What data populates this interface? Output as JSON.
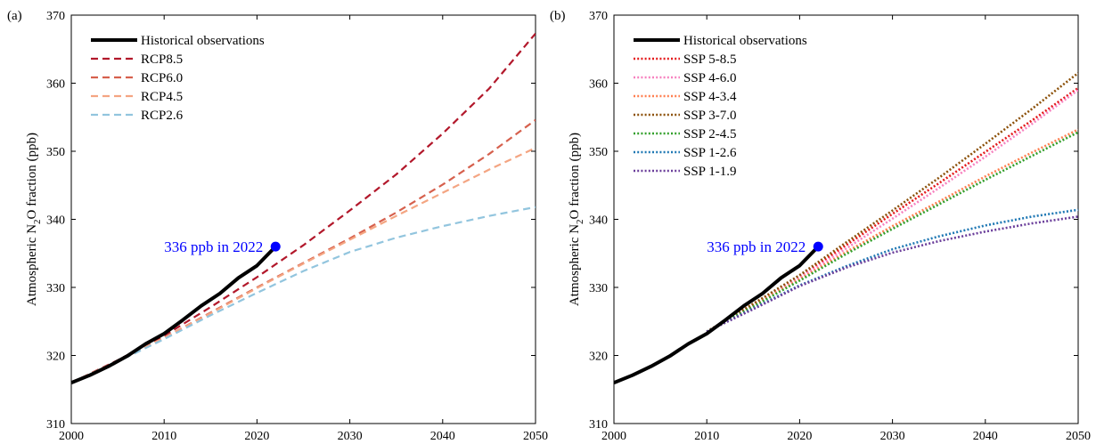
{
  "chart_data": [
    {
      "type": "line",
      "panel_label": "(a)",
      "ylabel_main": "Atmospheric N",
      "ylabel_sub": "2",
      "ylabel_rest": "O fraction (ppb)",
      "xlim": [
        2000,
        2050
      ],
      "ylim": [
        310,
        370
      ],
      "xticks": [
        "2000",
        "2010",
        "2020",
        "2030",
        "2040",
        "2050"
      ],
      "yticks": [
        "310",
        "320",
        "330",
        "340",
        "350",
        "360",
        "370"
      ],
      "legend_position": "top-left",
      "annotation": {
        "text": "336 ppb in 2022",
        "x": 2022,
        "y": 336,
        "color": "#0000ff"
      },
      "series": [
        {
          "name": "Historical observations",
          "color": "#000000",
          "style": "solid",
          "points": [
            [
              2000,
              316.0
            ],
            [
              2002,
              317.1
            ],
            [
              2004,
              318.4
            ],
            [
              2006,
              319.9
            ],
            [
              2008,
              321.7
            ],
            [
              2010,
              323.2
            ],
            [
              2012,
              325.2
            ],
            [
              2014,
              327.3
            ],
            [
              2016,
              329.1
            ],
            [
              2018,
              331.4
            ],
            [
              2020,
              333.2
            ],
            [
              2022,
              336.0
            ]
          ]
        },
        {
          "name": "RCP8.5",
          "color": "#b2182b",
          "style": "dashed",
          "points": [
            [
              2000,
              316.0
            ],
            [
              2005,
              319.3
            ],
            [
              2010,
              322.9
            ],
            [
              2015,
              327.1
            ],
            [
              2020,
              331.5
            ],
            [
              2025,
              336.2
            ],
            [
              2030,
              341.3
            ],
            [
              2035,
              346.6
            ],
            [
              2040,
              352.6
            ],
            [
              2045,
              359.2
            ],
            [
              2050,
              367.3
            ]
          ]
        },
        {
          "name": "RCP6.0",
          "color": "#d6604d",
          "style": "dashed",
          "points": [
            [
              2000,
              316.0
            ],
            [
              2005,
              319.2
            ],
            [
              2010,
              322.6
            ],
            [
              2015,
              326.3
            ],
            [
              2020,
              330.0
            ],
            [
              2025,
              333.6
            ],
            [
              2030,
              337.2
            ],
            [
              2035,
              341.0
            ],
            [
              2040,
              345.1
            ],
            [
              2045,
              349.6
            ],
            [
              2050,
              354.6
            ]
          ]
        },
        {
          "name": "RCP4.5",
          "color": "#f4a582",
          "style": "dashed",
          "points": [
            [
              2000,
              316.0
            ],
            [
              2005,
              319.2
            ],
            [
              2010,
              322.6
            ],
            [
              2015,
              326.2
            ],
            [
              2020,
              329.9
            ],
            [
              2025,
              333.5
            ],
            [
              2030,
              337.0
            ],
            [
              2035,
              340.5
            ],
            [
              2040,
              343.9
            ],
            [
              2045,
              347.3
            ],
            [
              2050,
              350.5
            ]
          ]
        },
        {
          "name": "RCP2.6",
          "color": "#92c5de",
          "style": "dashed",
          "points": [
            [
              2000,
              316.0
            ],
            [
              2005,
              319.1
            ],
            [
              2010,
              322.4
            ],
            [
              2015,
              325.9
            ],
            [
              2020,
              329.2
            ],
            [
              2025,
              332.4
            ],
            [
              2030,
              335.2
            ],
            [
              2035,
              337.3
            ],
            [
              2040,
              339.0
            ],
            [
              2045,
              340.5
            ],
            [
              2050,
              341.8
            ]
          ]
        }
      ]
    },
    {
      "type": "line",
      "panel_label": "(b)",
      "ylabel_main": "Atmospheric N",
      "ylabel_sub": "2",
      "ylabel_rest": "O fraction (ppb)",
      "xlim": [
        2000,
        2050
      ],
      "ylim": [
        310,
        370
      ],
      "xticks": [
        "2000",
        "2010",
        "2020",
        "2030",
        "2040",
        "2050"
      ],
      "yticks": [
        "310",
        "320",
        "330",
        "340",
        "350",
        "360",
        "370"
      ],
      "legend_position": "top-left",
      "annotation": {
        "text": "336 ppb in 2022",
        "x": 2022,
        "y": 336,
        "color": "#0000ff"
      },
      "series": [
        {
          "name": "Historical observations",
          "color": "#000000",
          "style": "solid",
          "points": [
            [
              2000,
              316.0
            ],
            [
              2002,
              317.1
            ],
            [
              2004,
              318.4
            ],
            [
              2006,
              319.9
            ],
            [
              2008,
              321.7
            ],
            [
              2010,
              323.2
            ],
            [
              2012,
              325.2
            ],
            [
              2014,
              327.3
            ],
            [
              2016,
              329.1
            ],
            [
              2018,
              331.4
            ],
            [
              2020,
              333.2
            ],
            [
              2022,
              336.0
            ]
          ]
        },
        {
          "name": "SSP 5-8.5",
          "color": "#e41a1c",
          "style": "dotted",
          "points": [
            [
              2010,
              323.5
            ],
            [
              2015,
              327.5
            ],
            [
              2020,
              331.6
            ],
            [
              2025,
              336.2
            ],
            [
              2030,
              340.8
            ],
            [
              2035,
              345.3
            ],
            [
              2040,
              349.9
            ],
            [
              2045,
              354.5
            ],
            [
              2050,
              359.3
            ]
          ]
        },
        {
          "name": "SSP 4-6.0",
          "color": "#f781bf",
          "style": "dotted",
          "points": [
            [
              2010,
              323.5
            ],
            [
              2015,
              327.4
            ],
            [
              2020,
              331.4
            ],
            [
              2025,
              335.7
            ],
            [
              2030,
              340.1
            ],
            [
              2035,
              344.6
            ],
            [
              2040,
              349.2
            ],
            [
              2045,
              354.0
            ],
            [
              2050,
              359.0
            ]
          ]
        },
        {
          "name": "SSP 4-3.4",
          "color": "#ff7f50",
          "style": "dotted",
          "points": [
            [
              2010,
              323.5
            ],
            [
              2015,
              327.3
            ],
            [
              2020,
              331.2
            ],
            [
              2025,
              335.2
            ],
            [
              2030,
              339.0
            ],
            [
              2035,
              342.6
            ],
            [
              2040,
              346.3
            ],
            [
              2045,
              349.8
            ],
            [
              2050,
              353.2
            ]
          ]
        },
        {
          "name": "SSP 3-7.0",
          "color": "#8c510a",
          "style": "dotted",
          "points": [
            [
              2010,
              323.5
            ],
            [
              2015,
              327.6
            ],
            [
              2020,
              331.8
            ],
            [
              2025,
              336.6
            ],
            [
              2030,
              341.3
            ],
            [
              2035,
              346.1
            ],
            [
              2040,
              351.1
            ],
            [
              2045,
              356.2
            ],
            [
              2050,
              361.5
            ]
          ]
        },
        {
          "name": "SSP 2-4.5",
          "color": "#33a02c",
          "style": "dotted",
          "points": [
            [
              2010,
              323.5
            ],
            [
              2015,
              327.2
            ],
            [
              2020,
              331.0
            ],
            [
              2025,
              334.9
            ],
            [
              2030,
              338.6
            ],
            [
              2035,
              342.2
            ],
            [
              2040,
              345.8
            ],
            [
              2045,
              349.3
            ],
            [
              2050,
              352.8
            ]
          ]
        },
        {
          "name": "SSP 1-2.6",
          "color": "#1f78b4",
          "style": "dotted",
          "points": [
            [
              2010,
              323.5
            ],
            [
              2015,
              326.9
            ],
            [
              2020,
              330.3
            ],
            [
              2025,
              333.1
            ],
            [
              2030,
              335.6
            ],
            [
              2035,
              337.5
            ],
            [
              2040,
              339.1
            ],
            [
              2045,
              340.4
            ],
            [
              2050,
              341.4
            ]
          ]
        },
        {
          "name": "SSP 1-1.9",
          "color": "#6a3d9a",
          "style": "dotted",
          "points": [
            [
              2010,
              323.5
            ],
            [
              2015,
              326.8
            ],
            [
              2020,
              330.2
            ],
            [
              2025,
              332.9
            ],
            [
              2030,
              335.1
            ],
            [
              2035,
              336.8
            ],
            [
              2040,
              338.2
            ],
            [
              2045,
              339.4
            ],
            [
              2050,
              340.4
            ]
          ]
        }
      ]
    }
  ]
}
